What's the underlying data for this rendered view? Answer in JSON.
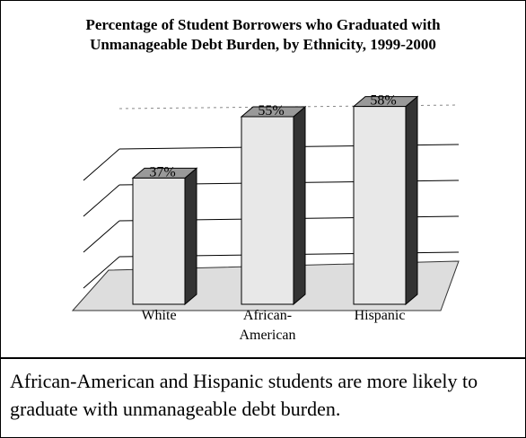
{
  "chart_data": {
    "type": "bar3d",
    "title": "Percentage of Student Borrowers who Graduated with Unmanageable Debt Burden, by Ethnicity, 1999-2000",
    "categories": [
      "White",
      "African-American",
      "Hispanic"
    ],
    "values": [
      37,
      55,
      58
    ],
    "value_labels": [
      "37%",
      "55%",
      "58%"
    ],
    "ylim": [
      0,
      60
    ],
    "caption": "African-American and Hispanic students are more likely to graduate with unmanageable debt burden."
  }
}
